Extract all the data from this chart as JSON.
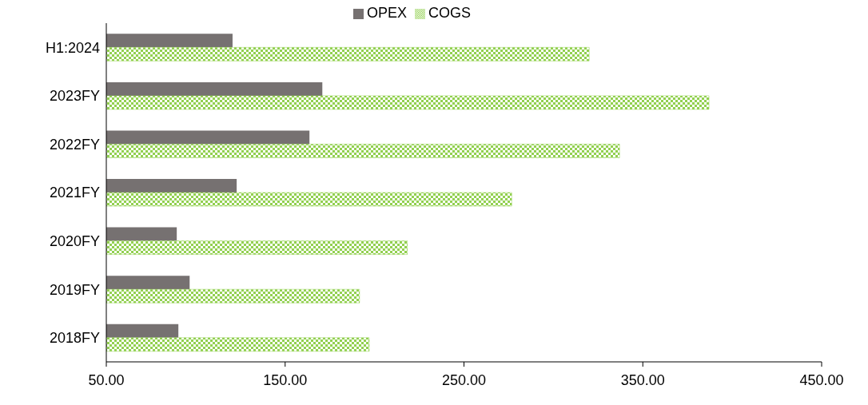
{
  "chart_data": {
    "type": "bar",
    "orientation": "horizontal",
    "categories": [
      "H1:2024",
      "2023FY",
      "2022FY",
      "2021FY",
      "2020FY",
      "2019FY",
      "2018FY"
    ],
    "series": [
      {
        "name": "OPEX",
        "color": "#767171",
        "values": [
          120.6,
          170.8,
          163.6,
          122.9,
          89.4,
          96.6,
          90.3
        ]
      },
      {
        "name": "COGS",
        "color": "#92d050",
        "values": [
          320,
          387,
          337,
          276.7,
          218.3,
          191.6,
          197
        ]
      }
    ],
    "xlim": [
      50,
      450
    ],
    "xticks": [
      {
        "value": 50,
        "label": "50.00"
      },
      {
        "value": 150,
        "label": "150.00"
      },
      {
        "value": 250,
        "label": "250.00"
      },
      {
        "value": 350,
        "label": "350.00"
      },
      {
        "value": 450,
        "label": "450.00"
      }
    ],
    "grid": false,
    "legend": "top"
  }
}
